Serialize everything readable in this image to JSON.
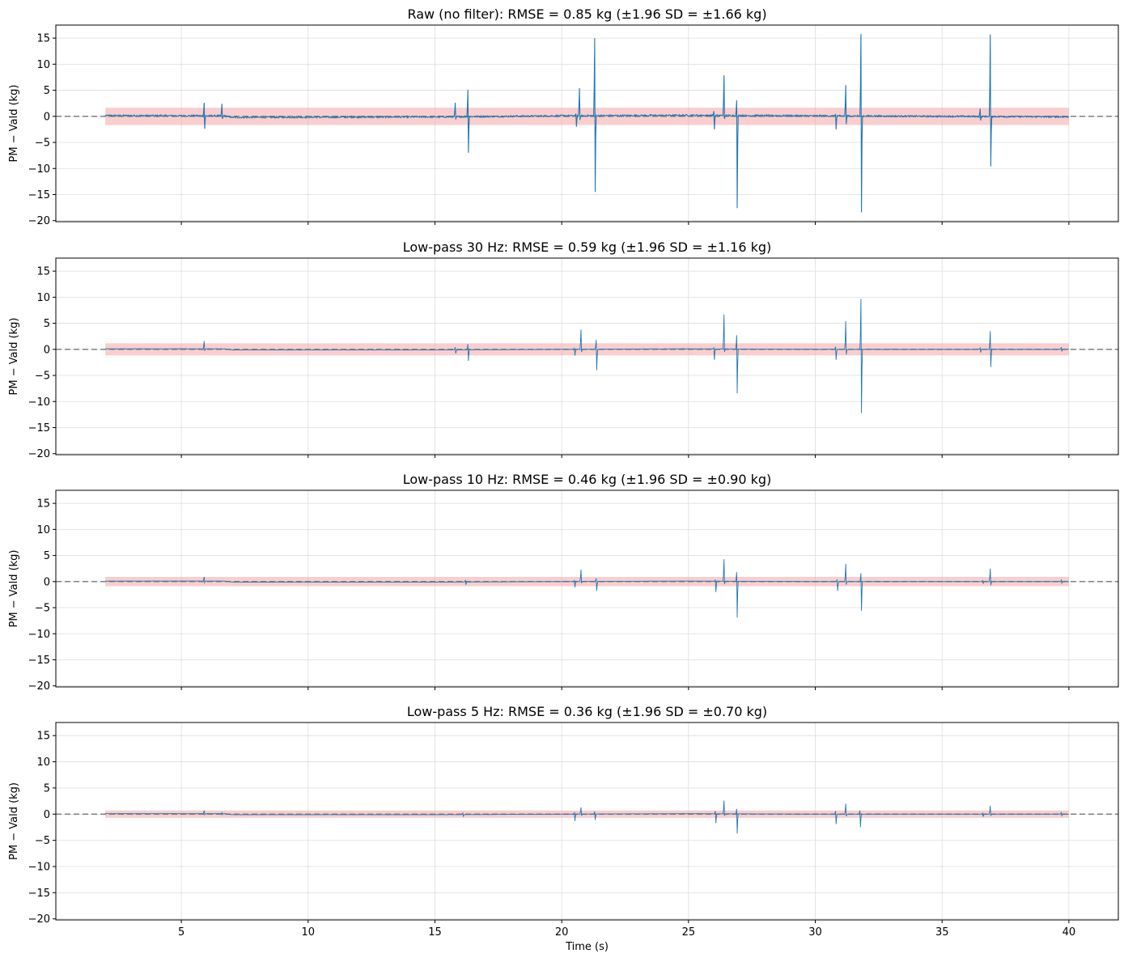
{
  "figure": {
    "xlabel": "Time (s)",
    "ylabel": "PM − Vald (kg)"
  },
  "colors": {
    "line": "#1f77b4",
    "band": "#f4a6a6",
    "zero_line": "#808080",
    "grid": "#dddddd"
  },
  "chart_data": [
    {
      "type": "line",
      "title": "Raw (no filter): RMSE = 0.85 kg  (±1.96 SD = ±1.66 kg)",
      "ylabel": "PM − Vald (kg)",
      "xlim": [
        0.05,
        41.95
      ],
      "ylim": [
        -20.2,
        17.5
      ],
      "xticks": [
        5,
        10,
        15,
        20,
        25,
        30,
        35,
        40
      ],
      "yticks": [
        -20,
        -15,
        -10,
        -5,
        0,
        5,
        10,
        15
      ],
      "band": 1.66,
      "zero_line": true,
      "grid": true,
      "x_start": 2.0,
      "x_end": 40.0,
      "baseline": [
        [
          2.0,
          0.15
        ],
        [
          6.7,
          0.1
        ],
        [
          7.0,
          -0.2
        ],
        [
          15.4,
          -0.1
        ],
        [
          20.0,
          0.1
        ],
        [
          25.0,
          0.2
        ],
        [
          30.0,
          0.1
        ],
        [
          40.0,
          -0.1
        ]
      ],
      "events": [
        {
          "t": 5.9,
          "min": -2.4,
          "max": 2.6
        },
        {
          "t": 6.6,
          "min": -0.5,
          "max": 2.4
        },
        {
          "t": 15.8,
          "min": -0.6,
          "max": 2.6
        },
        {
          "t": 16.3,
          "min": -7.0,
          "max": 5.1
        },
        {
          "t": 20.7,
          "min": -0.7,
          "max": 5.4
        },
        {
          "t": 20.55,
          "min": -2.0,
          "max": 0.5
        },
        {
          "t": 21.3,
          "min": -14.5,
          "max": 15.0
        },
        {
          "t": 26.0,
          "min": -2.5,
          "max": 1.0
        },
        {
          "t": 26.4,
          "min": -0.5,
          "max": 7.9
        },
        {
          "t": 26.9,
          "min": -17.6,
          "max": 3.1
        },
        {
          "t": 30.8,
          "min": -2.5,
          "max": 0.3
        },
        {
          "t": 31.2,
          "min": -1.5,
          "max": 6.0
        },
        {
          "t": 31.8,
          "min": -18.4,
          "max": 15.8
        },
        {
          "t": 36.5,
          "min": -0.8,
          "max": 1.5
        },
        {
          "t": 36.9,
          "min": -9.6,
          "max": 15.7
        }
      ],
      "noise": 0.3
    },
    {
      "type": "line",
      "title": "Low-pass 30 Hz: RMSE = 0.59 kg  (±1.96 SD = ±1.16 kg)",
      "ylabel": "PM − Vald (kg)",
      "xlim": [
        0.05,
        41.95
      ],
      "ylim": [
        -20.2,
        17.5
      ],
      "xticks": [
        5,
        10,
        15,
        20,
        25,
        30,
        35,
        40
      ],
      "yticks": [
        -20,
        -15,
        -10,
        -5,
        0,
        5,
        10,
        15
      ],
      "band": 1.16,
      "zero_line": true,
      "grid": true,
      "x_start": 2.0,
      "x_end": 40.0,
      "baseline": [
        [
          2.0,
          0.1
        ],
        [
          6.7,
          0.1
        ],
        [
          7.0,
          -0.1
        ],
        [
          15.4,
          -0.1
        ],
        [
          20.0,
          0.0
        ],
        [
          25.0,
          0.1
        ],
        [
          30.0,
          0.0
        ],
        [
          40.0,
          0.0
        ]
      ],
      "events": [
        {
          "t": 5.9,
          "min": -0.3,
          "max": 1.6
        },
        {
          "t": 15.8,
          "min": -0.8,
          "max": 0.4
        },
        {
          "t": 16.3,
          "min": -2.2,
          "max": 1.0
        },
        {
          "t": 20.5,
          "min": -1.2,
          "max": 0.2
        },
        {
          "t": 20.75,
          "min": -0.5,
          "max": 3.8
        },
        {
          "t": 21.35,
          "min": -4.0,
          "max": 1.8
        },
        {
          "t": 26.0,
          "min": -2.0,
          "max": 0.3
        },
        {
          "t": 26.4,
          "min": -0.5,
          "max": 6.7
        },
        {
          "t": 26.9,
          "min": -8.4,
          "max": 2.7
        },
        {
          "t": 30.8,
          "min": -2.0,
          "max": 0.5
        },
        {
          "t": 31.2,
          "min": -1.0,
          "max": 5.4
        },
        {
          "t": 31.8,
          "min": -12.2,
          "max": 9.7
        },
        {
          "t": 36.5,
          "min": -0.6,
          "max": 0.3
        },
        {
          "t": 36.9,
          "min": -3.4,
          "max": 3.5
        },
        {
          "t": 39.7,
          "min": -0.4,
          "max": 0.4
        }
      ],
      "noise": 0.08
    },
    {
      "type": "line",
      "title": "Low-pass 10 Hz: RMSE = 0.46 kg  (±1.96 SD = ±0.90 kg)",
      "ylabel": "PM − Vald (kg)",
      "xlim": [
        0.05,
        41.95
      ],
      "ylim": [
        -20.2,
        17.5
      ],
      "xticks": [
        5,
        10,
        15,
        20,
        25,
        30,
        35,
        40
      ],
      "yticks": [
        -20,
        -15,
        -10,
        -5,
        0,
        5,
        10,
        15
      ],
      "band": 0.9,
      "zero_line": true,
      "grid": true,
      "x_start": 2.0,
      "x_end": 40.0,
      "baseline": [
        [
          2.0,
          0.1
        ],
        [
          6.7,
          0.1
        ],
        [
          7.0,
          -0.1
        ],
        [
          15.4,
          -0.1
        ],
        [
          20.0,
          0.0
        ],
        [
          25.0,
          0.1
        ],
        [
          30.0,
          0.0
        ],
        [
          40.0,
          0.0
        ]
      ],
      "events": [
        {
          "t": 5.9,
          "min": -0.2,
          "max": 0.9
        },
        {
          "t": 16.2,
          "min": -0.6,
          "max": 0.3
        },
        {
          "t": 20.5,
          "min": -1.1,
          "max": 0.2
        },
        {
          "t": 20.75,
          "min": -0.3,
          "max": 2.3
        },
        {
          "t": 21.35,
          "min": -1.8,
          "max": 0.6
        },
        {
          "t": 26.05,
          "min": -2.0,
          "max": 0.3
        },
        {
          "t": 26.4,
          "min": -0.5,
          "max": 4.3
        },
        {
          "t": 26.9,
          "min": -6.9,
          "max": 1.8
        },
        {
          "t": 30.85,
          "min": -1.8,
          "max": 0.4
        },
        {
          "t": 31.2,
          "min": -0.6,
          "max": 3.4
        },
        {
          "t": 31.8,
          "min": -5.6,
          "max": 1.6
        },
        {
          "t": 36.6,
          "min": -0.4,
          "max": 0.2
        },
        {
          "t": 36.9,
          "min": -0.7,
          "max": 2.5
        },
        {
          "t": 39.7,
          "min": -0.3,
          "max": 0.3
        }
      ],
      "noise": 0.04
    },
    {
      "type": "line",
      "title": "Low-pass 5 Hz: RMSE = 0.36 kg  (±1.96 SD = ±0.70 kg)",
      "ylabel": "PM − Vald (kg)",
      "xlabel": "Time (s)",
      "xlim": [
        0.05,
        41.95
      ],
      "ylim": [
        -20.2,
        17.5
      ],
      "xticks": [
        5,
        10,
        15,
        20,
        25,
        30,
        35,
        40
      ],
      "yticks": [
        -20,
        -15,
        -10,
        -5,
        0,
        5,
        10,
        15
      ],
      "band": 0.7,
      "zero_line": true,
      "grid": true,
      "x_start": 2.0,
      "x_end": 40.0,
      "baseline": [
        [
          2.0,
          0.1
        ],
        [
          6.7,
          0.1
        ],
        [
          7.0,
          -0.1
        ],
        [
          15.4,
          -0.1
        ],
        [
          20.0,
          0.0
        ],
        [
          25.0,
          0.1
        ],
        [
          30.0,
          0.0
        ],
        [
          40.0,
          0.0
        ]
      ],
      "events": [
        {
          "t": 5.9,
          "min": -0.1,
          "max": 0.7
        },
        {
          "t": 6.6,
          "min": -0.1,
          "max": 0.3
        },
        {
          "t": 16.1,
          "min": -0.4,
          "max": 0.2
        },
        {
          "t": 20.5,
          "min": -1.3,
          "max": 0.3
        },
        {
          "t": 20.75,
          "min": -0.3,
          "max": 1.3
        },
        {
          "t": 21.3,
          "min": -1.1,
          "max": 0.5
        },
        {
          "t": 26.05,
          "min": -1.7,
          "max": 0.6
        },
        {
          "t": 26.4,
          "min": -0.3,
          "max": 2.6
        },
        {
          "t": 26.9,
          "min": -3.7,
          "max": 1.0
        },
        {
          "t": 30.8,
          "min": -1.9,
          "max": 0.6
        },
        {
          "t": 31.2,
          "min": -0.4,
          "max": 2.0
        },
        {
          "t": 31.75,
          "min": -2.5,
          "max": 0.7
        },
        {
          "t": 36.6,
          "min": -0.5,
          "max": 0.2
        },
        {
          "t": 36.9,
          "min": -0.3,
          "max": 1.6
        },
        {
          "t": 39.7,
          "min": -0.3,
          "max": 0.3
        }
      ],
      "noise": 0.03
    }
  ]
}
